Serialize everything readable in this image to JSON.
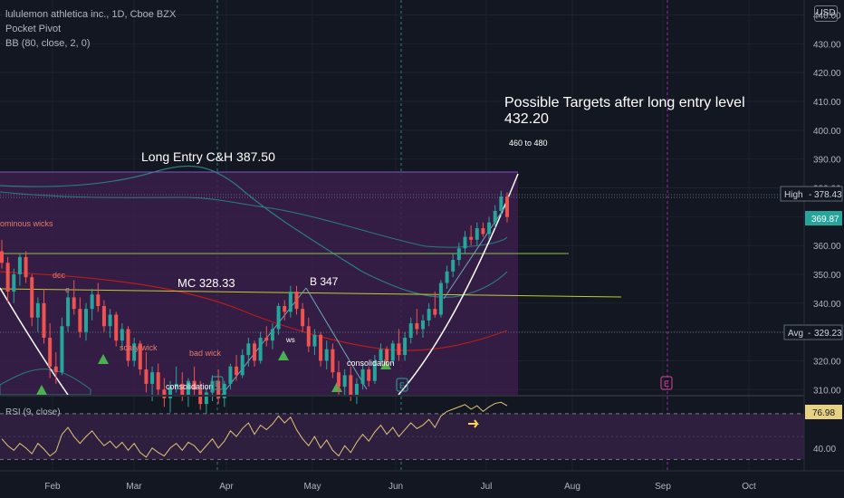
{
  "legend": {
    "title": "lululemon athletica inc., 1D, Cboe BZX",
    "indicator_1": "Pocket Pivot",
    "indicator_2": "BB (80, close, 2, 0)"
  },
  "currency_button": "USD",
  "price_labels": {
    "high_name": "High",
    "high_value": "378.43",
    "last_value": "369.87",
    "avg_name": "Avg",
    "avg_value": "329.23",
    "rsi_value": "76.98"
  },
  "annotations": {
    "targets_line1": "Possible Targets after long entry level",
    "targets_line2": "432.20",
    "targets_range": "460  to 480",
    "long_entry": "Long Entry C&H  387.50",
    "mc": "MC 328.33",
    "b347": "B 347",
    "ominous": "ominous wicks",
    "dcc": "dcc",
    "e": "e",
    "scary": "scary wick",
    "bad": "bad wick",
    "consolidation_1": "consolidation",
    "consolidation_2": "consolidation",
    "ws": "ws",
    "e_mark": "E"
  },
  "rsi_label": "RSI (9, close)",
  "colors": {
    "background": "#131722",
    "up": "#26a69a",
    "down": "#ef5350",
    "bb_fill": "#3b1f4b",
    "bb_line": "#2a7c82",
    "ma_line": "#b71c1c",
    "rsi_line": "#e0c27a",
    "rsi_band": "#2e1f3e",
    "green_line": "#8bc34a",
    "yellow_line": "#c0ca33",
    "event": "#9c27b0"
  },
  "chart_data": [
    {
      "type": "candlestick",
      "title": "lululemon athletica inc., 1D, Cboe BZX",
      "x_ticks": [
        "Feb",
        "Mar",
        "Apr",
        "May",
        "Jun",
        "Jul",
        "Aug",
        "Sep",
        "Oct"
      ],
      "y_ticks": [
        310,
        320,
        330,
        340,
        350,
        360,
        370,
        380,
        390,
        400,
        410,
        420,
        430,
        440
      ],
      "ylim": [
        306,
        443
      ],
      "levels": {
        "long_entry": 387.5,
        "mc": 328.33,
        "b": 347,
        "target": 432.2,
        "target_range": [
          460,
          480
        ],
        "high": 378.43,
        "last": 369.87,
        "avg": 329.23
      },
      "candles": [
        {
          "o": 358,
          "h": 362,
          "l": 352,
          "c": 354
        },
        {
          "o": 354,
          "h": 356,
          "l": 340,
          "c": 344
        },
        {
          "o": 344,
          "h": 352,
          "l": 340,
          "c": 350
        },
        {
          "o": 350,
          "h": 357,
          "l": 346,
          "c": 356
        },
        {
          "o": 356,
          "h": 358,
          "l": 347,
          "c": 349
        },
        {
          "o": 349,
          "h": 350,
          "l": 332,
          "c": 335
        },
        {
          "o": 335,
          "h": 342,
          "l": 330,
          "c": 340
        },
        {
          "o": 340,
          "h": 345,
          "l": 326,
          "c": 328
        },
        {
          "o": 328,
          "h": 333,
          "l": 314,
          "c": 318
        },
        {
          "o": 318,
          "h": 323,
          "l": 312,
          "c": 316
        },
        {
          "o": 316,
          "h": 335,
          "l": 315,
          "c": 332
        },
        {
          "o": 332,
          "h": 345,
          "l": 330,
          "c": 342
        },
        {
          "o": 342,
          "h": 348,
          "l": 336,
          "c": 338
        },
        {
          "o": 338,
          "h": 342,
          "l": 328,
          "c": 330
        },
        {
          "o": 330,
          "h": 340,
          "l": 327,
          "c": 338
        },
        {
          "o": 338,
          "h": 345,
          "l": 334,
          "c": 343
        },
        {
          "o": 343,
          "h": 347,
          "l": 337,
          "c": 339
        },
        {
          "o": 339,
          "h": 341,
          "l": 330,
          "c": 332
        },
        {
          "o": 332,
          "h": 338,
          "l": 328,
          "c": 336
        },
        {
          "o": 336,
          "h": 337,
          "l": 325,
          "c": 327
        },
        {
          "o": 327,
          "h": 333,
          "l": 324,
          "c": 331
        },
        {
          "o": 331,
          "h": 332,
          "l": 318,
          "c": 320
        },
        {
          "o": 320,
          "h": 328,
          "l": 318,
          "c": 326
        },
        {
          "o": 326,
          "h": 327,
          "l": 315,
          "c": 317
        },
        {
          "o": 317,
          "h": 323,
          "l": 309,
          "c": 312
        },
        {
          "o": 312,
          "h": 318,
          "l": 306,
          "c": 316
        },
        {
          "o": 316,
          "h": 319,
          "l": 308,
          "c": 310
        },
        {
          "o": 310,
          "h": 314,
          "l": 304,
          "c": 307
        },
        {
          "o": 307,
          "h": 313,
          "l": 302,
          "c": 311
        },
        {
          "o": 311,
          "h": 318,
          "l": 309,
          "c": 312
        },
        {
          "o": 312,
          "h": 316,
          "l": 306,
          "c": 308
        },
        {
          "o": 308,
          "h": 314,
          "l": 304,
          "c": 313
        },
        {
          "o": 313,
          "h": 318,
          "l": 308,
          "c": 310
        },
        {
          "o": 310,
          "h": 313,
          "l": 303,
          "c": 305
        },
        {
          "o": 305,
          "h": 311,
          "l": 300,
          "c": 309
        },
        {
          "o": 309,
          "h": 315,
          "l": 306,
          "c": 313
        },
        {
          "o": 313,
          "h": 317,
          "l": 305,
          "c": 307
        },
        {
          "o": 307,
          "h": 313,
          "l": 304,
          "c": 312
        },
        {
          "o": 312,
          "h": 319,
          "l": 310,
          "c": 318
        },
        {
          "o": 318,
          "h": 322,
          "l": 313,
          "c": 315
        },
        {
          "o": 315,
          "h": 324,
          "l": 314,
          "c": 322
        },
        {
          "o": 322,
          "h": 328,
          "l": 318,
          "c": 326
        },
        {
          "o": 326,
          "h": 327,
          "l": 318,
          "c": 320
        },
        {
          "o": 320,
          "h": 330,
          "l": 319,
          "c": 328
        },
        {
          "o": 328,
          "h": 332,
          "l": 325,
          "c": 327
        },
        {
          "o": 327,
          "h": 333,
          "l": 324,
          "c": 331
        },
        {
          "o": 331,
          "h": 340,
          "l": 329,
          "c": 339
        },
        {
          "o": 339,
          "h": 341,
          "l": 334,
          "c": 337
        },
        {
          "o": 337,
          "h": 346,
          "l": 335,
          "c": 344
        },
        {
          "o": 344,
          "h": 346,
          "l": 336,
          "c": 338
        },
        {
          "o": 338,
          "h": 340,
          "l": 330,
          "c": 332
        },
        {
          "o": 332,
          "h": 335,
          "l": 323,
          "c": 325
        },
        {
          "o": 325,
          "h": 331,
          "l": 322,
          "c": 329
        },
        {
          "o": 329,
          "h": 330,
          "l": 318,
          "c": 320
        },
        {
          "o": 320,
          "h": 327,
          "l": 317,
          "c": 324
        },
        {
          "o": 324,
          "h": 326,
          "l": 314,
          "c": 316
        },
        {
          "o": 316,
          "h": 320,
          "l": 308,
          "c": 311
        },
        {
          "o": 311,
          "h": 317,
          "l": 308,
          "c": 315
        },
        {
          "o": 315,
          "h": 318,
          "l": 306,
          "c": 308
        },
        {
          "o": 308,
          "h": 314,
          "l": 305,
          "c": 312
        },
        {
          "o": 312,
          "h": 319,
          "l": 310,
          "c": 317
        },
        {
          "o": 317,
          "h": 318,
          "l": 311,
          "c": 313
        },
        {
          "o": 313,
          "h": 322,
          "l": 312,
          "c": 320
        },
        {
          "o": 320,
          "h": 326,
          "l": 318,
          "c": 324
        },
        {
          "o": 324,
          "h": 325,
          "l": 318,
          "c": 320
        },
        {
          "o": 320,
          "h": 327,
          "l": 319,
          "c": 326
        },
        {
          "o": 326,
          "h": 331,
          "l": 320,
          "c": 322
        },
        {
          "o": 322,
          "h": 330,
          "l": 320,
          "c": 328
        },
        {
          "o": 328,
          "h": 335,
          "l": 326,
          "c": 333
        },
        {
          "o": 333,
          "h": 338,
          "l": 329,
          "c": 331
        },
        {
          "o": 331,
          "h": 336,
          "l": 328,
          "c": 334
        },
        {
          "o": 334,
          "h": 340,
          "l": 332,
          "c": 338
        },
        {
          "o": 338,
          "h": 344,
          "l": 335,
          "c": 336
        },
        {
          "o": 336,
          "h": 348,
          "l": 335,
          "c": 347
        },
        {
          "o": 347,
          "h": 353,
          "l": 345,
          "c": 351
        },
        {
          "o": 351,
          "h": 357,
          "l": 349,
          "c": 355
        },
        {
          "o": 355,
          "h": 361,
          "l": 353,
          "c": 359
        },
        {
          "o": 359,
          "h": 365,
          "l": 357,
          "c": 363
        },
        {
          "o": 363,
          "h": 367,
          "l": 360,
          "c": 362
        },
        {
          "o": 362,
          "h": 368,
          "l": 360,
          "c": 366
        },
        {
          "o": 366,
          "h": 368,
          "l": 363,
          "c": 364
        },
        {
          "o": 364,
          "h": 370,
          "l": 362,
          "c": 368
        },
        {
          "o": 368,
          "h": 374,
          "l": 366,
          "c": 372
        },
        {
          "o": 372,
          "h": 379,
          "l": 370,
          "c": 377
        },
        {
          "o": 377,
          "h": 378.43,
          "l": 368,
          "c": 369.87
        }
      ],
      "rsi": [
        48,
        42,
        38,
        44,
        40,
        35,
        44,
        39,
        33,
        37,
        52,
        58,
        50,
        44,
        50,
        55,
        48,
        42,
        46,
        40,
        45,
        38,
        44,
        36,
        32,
        40,
        36,
        33,
        40,
        44,
        38,
        45,
        42,
        36,
        42,
        48,
        40,
        46,
        55,
        50,
        57,
        62,
        52,
        60,
        56,
        61,
        68,
        62,
        67,
        56,
        48,
        42,
        50,
        40,
        47,
        38,
        33,
        42,
        36,
        45,
        52,
        46,
        54,
        60,
        52,
        58,
        50,
        56,
        62,
        57,
        60,
        65,
        58,
        68,
        72,
        74,
        76,
        78,
        74,
        77,
        72,
        76,
        79,
        80,
        76.98
      ],
      "rsi_levels": [
        70,
        30
      ]
    }
  ]
}
